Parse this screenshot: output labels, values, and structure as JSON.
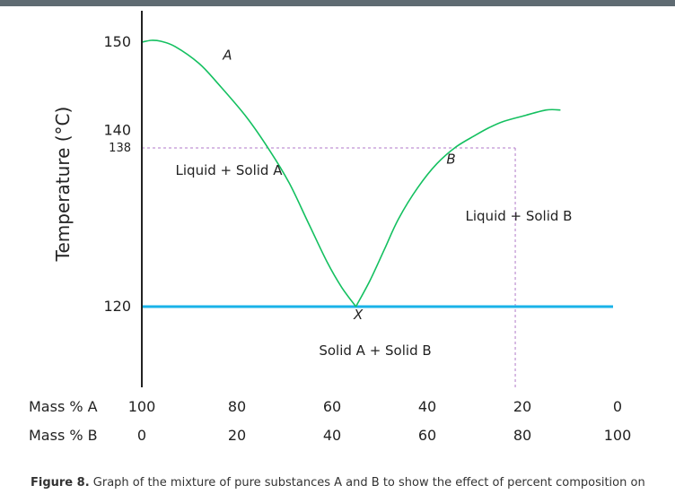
{
  "chart_data": {
    "type": "line",
    "title": "",
    "ylabel": "Temperature (°C)",
    "xaxes": [
      {
        "label": "Mass % A",
        "ticks": [
          100,
          80,
          60,
          40,
          20,
          0
        ]
      },
      {
        "label": "Mass % B",
        "ticks": [
          0,
          20,
          40,
          60,
          80,
          100
        ]
      }
    ],
    "xlim": [
      0,
      100
    ],
    "ylim": [
      114,
      152
    ],
    "ytick_values": [
      150,
      140,
      138,
      120
    ],
    "series": [
      {
        "name": "A",
        "x": [
          0,
          2,
          4,
          7,
          12,
          16,
          22,
          27,
          31,
          35,
          39,
          42,
          45
        ],
        "y": [
          150,
          150.2,
          150.1,
          149.5,
          147.6,
          145.3,
          141.5,
          137.6,
          134,
          129.5,
          125,
          122.2,
          120
        ]
      },
      {
        "name": "B",
        "x": [
          45,
          48,
          51,
          54,
          58,
          62,
          66,
          70,
          73,
          76,
          80,
          85,
          88
        ],
        "y": [
          120,
          123,
          126.5,
          130,
          133.5,
          136.2,
          138.1,
          139.4,
          140.3,
          141,
          141.6,
          142.3,
          142.3
        ]
      }
    ],
    "eutectic_line": {
      "y": 120,
      "color": "#1ab3e8"
    },
    "reference_lines": {
      "temperature": 138,
      "mass_percent_b": 78.5,
      "color": "#b07ac8"
    },
    "annotations": [
      {
        "text": "A",
        "x": 18,
        "y": 148
      },
      {
        "text": "B",
        "x": 65,
        "y": 136.2
      },
      {
        "text": "X",
        "x": 45.5,
        "y": 118.6
      },
      {
        "text": "Liquid + Solid A",
        "region": "left"
      },
      {
        "text": "Liquid + Solid B",
        "region": "right"
      },
      {
        "text": "Solid A + Solid B",
        "region": "bottom"
      }
    ],
    "colors": {
      "curve": "#14c060",
      "axis": "#222222",
      "text": "#222222"
    }
  },
  "caption": {
    "label": "Figure 8.",
    "text": "Graph of the mixture of pure substances A and B to show the effect of percent composition on"
  }
}
